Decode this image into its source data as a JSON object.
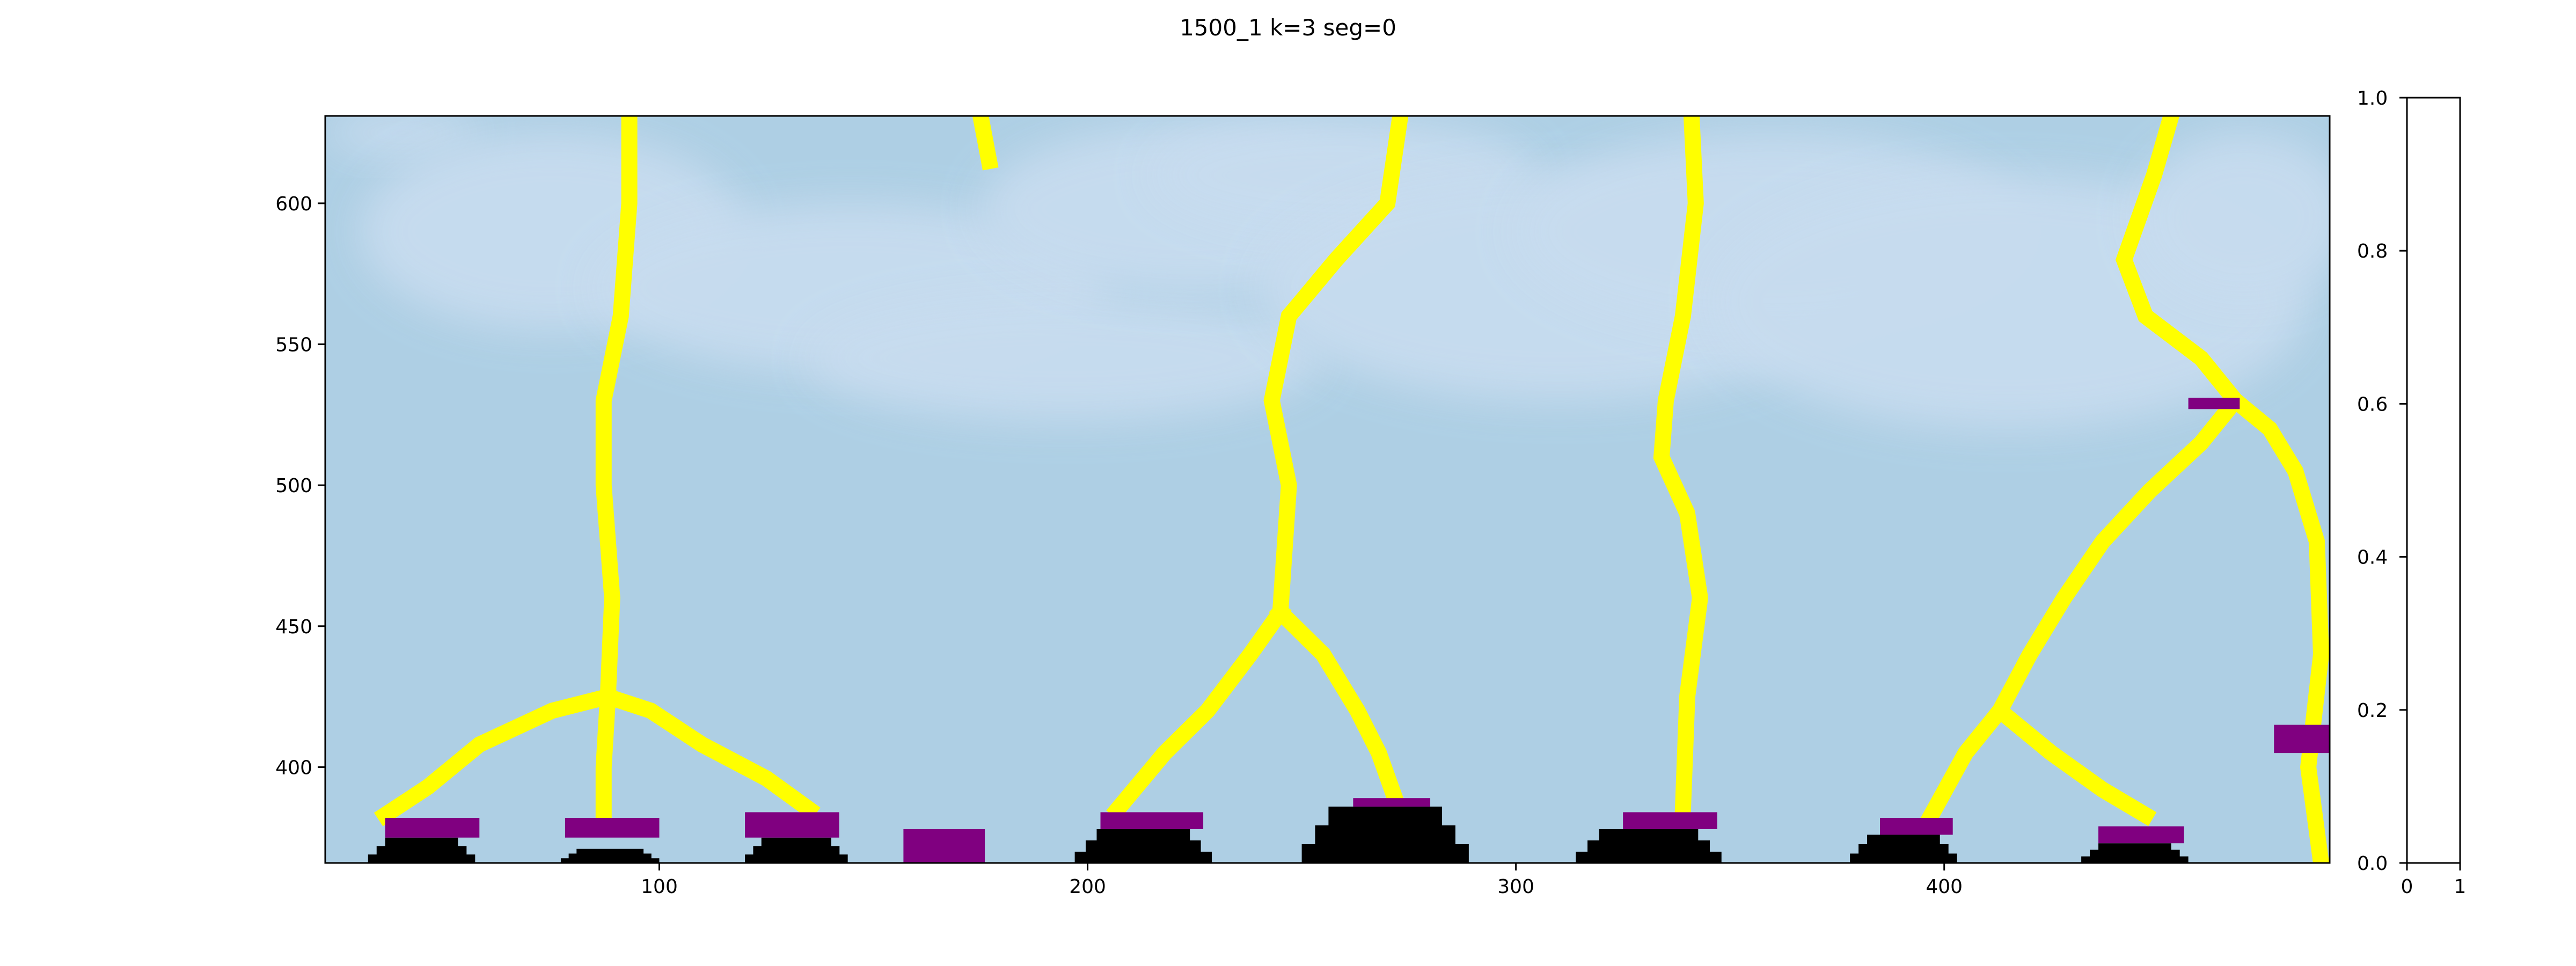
{
  "title": "1500_1 k=3   seg=0",
  "colors": {
    "background": "#aecfe4",
    "light_region": "#c7dcef",
    "boundary": "#ffff00",
    "cap": "#800080",
    "base": "#000000"
  },
  "chart_data": [
    {
      "type": "heatmap",
      "title": "1500_1 k=3   seg=0",
      "xlabel": "",
      "ylabel": "",
      "xlim": [
        22,
        490
      ],
      "ylim": [
        366,
        631
      ],
      "xticks": [
        100,
        200,
        300,
        400
      ],
      "yticks": [
        400,
        450,
        500,
        550,
        600
      ],
      "grid": false,
      "legend": "none",
      "light_regions": [
        {
          "cx": 40,
          "cy": 625,
          "rx": 18,
          "ry": 8
        },
        {
          "cx": 75,
          "cy": 590,
          "rx": 45,
          "ry": 35
        },
        {
          "cx": 145,
          "cy": 570,
          "rx": 60,
          "ry": 30
        },
        {
          "cx": 195,
          "cy": 545,
          "rx": 60,
          "ry": 22
        },
        {
          "cx": 225,
          "cy": 598,
          "rx": 50,
          "ry": 30
        },
        {
          "cx": 260,
          "cy": 610,
          "rx": 45,
          "ry": 20
        },
        {
          "cx": 310,
          "cy": 570,
          "rx": 70,
          "ry": 40
        },
        {
          "cx": 360,
          "cy": 590,
          "rx": 60,
          "ry": 35
        },
        {
          "cx": 415,
          "cy": 565,
          "rx": 70,
          "ry": 45
        },
        {
          "cx": 470,
          "cy": 595,
          "rx": 25,
          "ry": 30
        }
      ],
      "boundaries": [
        {
          "name": "",
          "points": [
            [
              93,
              631
            ],
            [
              93,
              600
            ],
            [
              91,
              560
            ],
            [
              87,
              530
            ],
            [
              87,
              500
            ],
            [
              89,
              460
            ],
            [
              88,
              425
            ]
          ]
        },
        {
          "name": "",
          "points": [
            [
              88,
              425
            ],
            [
              75,
              420
            ],
            [
              58,
              408
            ],
            [
              46,
              393
            ],
            [
              36,
              383
            ]
          ]
        },
        {
          "name": "",
          "points": [
            [
              88,
              425
            ],
            [
              87,
              400
            ],
            [
              87,
              383
            ]
          ]
        },
        {
          "name": "",
          "points": [
            [
              88,
              425
            ],
            [
              98,
              420
            ],
            [
              110,
              408
            ],
            [
              125,
              396
            ],
            [
              135,
              385
            ]
          ]
        },
        {
          "name": "",
          "points": [
            [
              175,
              631
            ],
            [
              177,
              615
            ]
          ]
        },
        {
          "name": "",
          "points": [
            [
              273,
              631
            ],
            [
              270,
              600
            ],
            [
              258,
              580
            ],
            [
              247,
              560
            ],
            [
              243,
              530
            ],
            [
              247,
              500
            ],
            [
              245,
              455
            ]
          ]
        },
        {
          "name": "",
          "points": [
            [
              245,
              455
            ],
            [
              238,
              440
            ],
            [
              228,
              420
            ],
            [
              218,
              405
            ],
            [
              207,
              385
            ]
          ]
        },
        {
          "name": "",
          "points": [
            [
              245,
              455
            ],
            [
              255,
              440
            ],
            [
              263,
              420
            ],
            [
              268,
              405
            ],
            [
              272,
              388
            ]
          ]
        },
        {
          "name": "",
          "points": [
            [
              341,
              631
            ],
            [
              342,
              600
            ],
            [
              339,
              560
            ],
            [
              335,
              530
            ],
            [
              334,
              510
            ],
            [
              340,
              490
            ],
            [
              343,
              460
            ],
            [
              340,
              425
            ],
            [
              339,
              385
            ]
          ]
        },
        {
          "name": "",
          "points": [
            [
              453,
              631
            ],
            [
              449,
              610
            ],
            [
              442,
              580
            ],
            [
              447,
              560
            ],
            [
              460,
              545
            ],
            [
              468,
              530
            ]
          ]
        },
        {
          "name": "",
          "points": [
            [
              468,
              530
            ],
            [
              460,
              515
            ],
            [
              448,
              498
            ],
            [
              437,
              480
            ],
            [
              428,
              460
            ],
            [
              420,
              440
            ],
            [
              413,
              420
            ]
          ]
        },
        {
          "name": "",
          "points": [
            [
              413,
              420
            ],
            [
              405,
              405
            ],
            [
              397,
              383
            ]
          ]
        },
        {
          "name": "",
          "points": [
            [
              413,
              420
            ],
            [
              425,
              405
            ],
            [
              437,
              392
            ],
            [
              447,
              383
            ]
          ]
        },
        {
          "name": "",
          "points": [
            [
              468,
              530
            ],
            [
              476,
              520
            ],
            [
              482,
              505
            ],
            [
              487,
              480
            ],
            [
              488,
              440
            ],
            [
              485,
              400
            ],
            [
              488,
              366
            ]
          ]
        }
      ],
      "caps": [
        {
          "x0": 36,
          "x1": 58,
          "y0": 375,
          "y1": 382
        },
        {
          "x0": 78,
          "x1": 100,
          "y0": 375,
          "y1": 382
        },
        {
          "x0": 120,
          "x1": 142,
          "y0": 375,
          "y1": 384
        },
        {
          "x0": 157,
          "x1": 176,
          "y0": 366,
          "y1": 378
        },
        {
          "x0": 203,
          "x1": 227,
          "y0": 378,
          "y1": 384
        },
        {
          "x0": 262,
          "x1": 280,
          "y0": 386,
          "y1": 389
        },
        {
          "x0": 325,
          "x1": 347,
          "y0": 378,
          "y1": 384
        },
        {
          "x0": 385,
          "x1": 402,
          "y0": 376,
          "y1": 382
        },
        {
          "x0": 436,
          "x1": 456,
          "y0": 373,
          "y1": 379
        },
        {
          "x0": 457,
          "x1": 469,
          "y0": 527,
          "y1": 531
        },
        {
          "x0": 477,
          "x1": 490,
          "y0": 405,
          "y1": 415
        }
      ],
      "bases": [
        {
          "x0": 32,
          "x1": 57,
          "y0": 366,
          "y1": 375
        },
        {
          "x0": 77,
          "x1": 100,
          "y0": 366,
          "y1": 371
        },
        {
          "x0": 120,
          "x1": 144,
          "y0": 366,
          "y1": 375
        },
        {
          "x0": 197,
          "x1": 229,
          "y0": 366,
          "y1": 378
        },
        {
          "x0": 250,
          "x1": 289,
          "y0": 366,
          "y1": 386
        },
        {
          "x0": 314,
          "x1": 348,
          "y0": 366,
          "y1": 378
        },
        {
          "x0": 378,
          "x1": 403,
          "y0": 366,
          "y1": 376
        },
        {
          "x0": 432,
          "x1": 457,
          "y0": 366,
          "y1": 373
        }
      ]
    },
    {
      "type": "heatmap",
      "title": "",
      "xlabel": "",
      "ylabel": "",
      "xlim": [
        0,
        1
      ],
      "ylim": [
        0,
        1
      ],
      "xticks": [
        0,
        1
      ],
      "yticks": [
        0.0,
        0.2,
        0.4,
        0.6,
        0.8,
        1.0
      ],
      "ytick_position": "right",
      "grid": false,
      "legend": "none"
    }
  ],
  "labels": {
    "main_xticks": [
      "100",
      "200",
      "300",
      "400"
    ],
    "main_yticks": [
      "400",
      "450",
      "500",
      "550",
      "600"
    ],
    "side_xticks": [
      "0",
      "1"
    ],
    "side_yticks": [
      "0.0",
      "0.2",
      "0.4",
      "0.6",
      "0.8",
      "1.0"
    ]
  }
}
